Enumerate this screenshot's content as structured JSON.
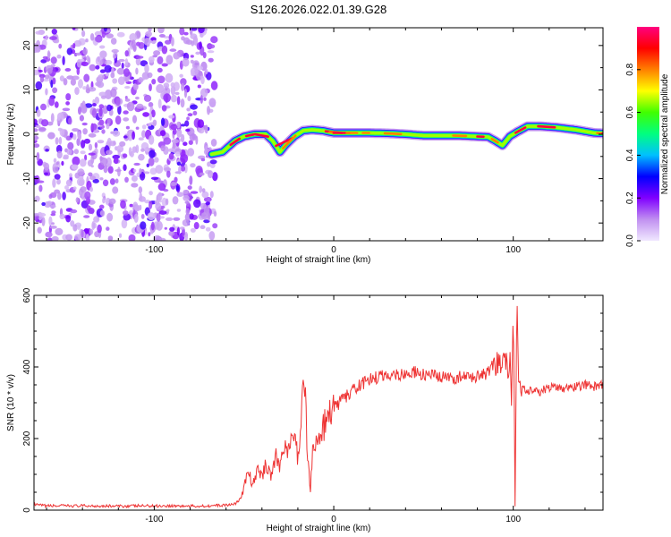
{
  "title": "S126.2026.022.01.39.G28",
  "chart_data": [
    {
      "type": "heatmap",
      "name": "spectrogram",
      "xlabel": "Height of straight line (km)",
      "ylabel": "Frequency (Hz)",
      "xlim": [
        -167,
        150
      ],
      "ylim": [
        -24,
        24
      ],
      "xticks": [
        -100,
        0,
        100
      ],
      "xtick_labels": [
        "-100",
        "0",
        "100"
      ],
      "yticks": [
        -20,
        -10,
        0,
        10,
        20
      ],
      "ytick_labels": [
        "-20",
        "-10",
        "0",
        "10",
        "20"
      ],
      "noise_region_x": [
        -167,
        -66
      ],
      "signal_track": {
        "x": [
          -68,
          -62,
          -55,
          -50,
          -44,
          -38,
          -34,
          -30,
          -27,
          -22,
          -17,
          -12,
          -6,
          0,
          10,
          20,
          30,
          40,
          50,
          60,
          70,
          80,
          86,
          90,
          94,
          98,
          102,
          108,
          115,
          125,
          135,
          145,
          150
        ],
        "freq": [
          -4.5,
          -4,
          -1.5,
          -0.5,
          0,
          0,
          -1.5,
          -4,
          -2.5,
          -0.5,
          0.8,
          1,
          0.8,
          0.3,
          0.3,
          0.3,
          0.2,
          0,
          -0.3,
          -0.3,
          -0.3,
          -0.5,
          -0.6,
          -1.5,
          -2.5,
          -0.5,
          0.5,
          1.8,
          1.8,
          1.5,
          1.0,
          0.3,
          0.2
        ]
      },
      "colorbar": {
        "label": "Normalized spectral amplitude",
        "range": [
          0,
          1
        ],
        "ticks": [
          0.0,
          0.2,
          0.4,
          0.6,
          0.8
        ],
        "tick_labels": [
          "0.0",
          "0.2",
          "0.4",
          "0.6",
          "0.8"
        ],
        "colors": [
          "#f0e8ff",
          "#c090f0",
          "#8000ff",
          "#0000ff",
          "#00c0ff",
          "#00ff80",
          "#40ff00",
          "#ffff00",
          "#ff8000",
          "#ff0000",
          "#ff0080"
        ]
      }
    },
    {
      "type": "line",
      "name": "snr",
      "xlabel": "Height of straight line (km)",
      "ylabel": "SNR (10 * v/v)",
      "xlim": [
        -167,
        150
      ],
      "ylim": [
        0,
        600
      ],
      "xticks": [
        -100,
        0,
        100
      ],
      "xtick_labels": [
        "-100",
        "0",
        "100"
      ],
      "yticks": [
        0,
        200,
        400,
        600
      ],
      "ytick_labels": [
        "0",
        "200",
        "400",
        "600"
      ],
      "series": [
        {
          "name": "SNR",
          "color": "#ee3333",
          "x": [
            -167,
            -160,
            -150,
            -140,
            -130,
            -120,
            -110,
            -100,
            -90,
            -80,
            -70,
            -60,
            -55,
            -52,
            -50,
            -48,
            -45,
            -42,
            -40,
            -38,
            -35,
            -32,
            -30,
            -28,
            -25,
            -22,
            -20,
            -18,
            -16,
            -15,
            -14,
            -13,
            -12,
            -10,
            -8,
            -6,
            -4,
            -2,
            0,
            5,
            10,
            15,
            20,
            25,
            30,
            35,
            40,
            45,
            50,
            55,
            60,
            65,
            70,
            75,
            80,
            85,
            88,
            90,
            92,
            94,
            96,
            97,
            98,
            99,
            100,
            101,
            102,
            103,
            104,
            106,
            110,
            115,
            120,
            125,
            130,
            135,
            140,
            145,
            150
          ],
          "y": [
            15,
            12,
            12,
            12,
            12,
            11,
            12,
            12,
            12,
            11,
            12,
            14,
            18,
            30,
            60,
            110,
            70,
            120,
            90,
            130,
            100,
            150,
            120,
            190,
            160,
            220,
            140,
            280,
            360,
            200,
            110,
            60,
            160,
            180,
            200,
            230,
            250,
            270,
            285,
            310,
            330,
            350,
            365,
            372,
            378,
            380,
            380,
            385,
            378,
            375,
            370,
            368,
            372,
            370,
            375,
            380,
            390,
            400,
            410,
            420,
            430,
            350,
            440,
            300,
            600,
            20,
            590,
            340,
            330,
            335,
            338,
            332,
            340,
            345,
            340,
            345,
            350,
            345,
            350
          ]
        }
      ]
    }
  ]
}
